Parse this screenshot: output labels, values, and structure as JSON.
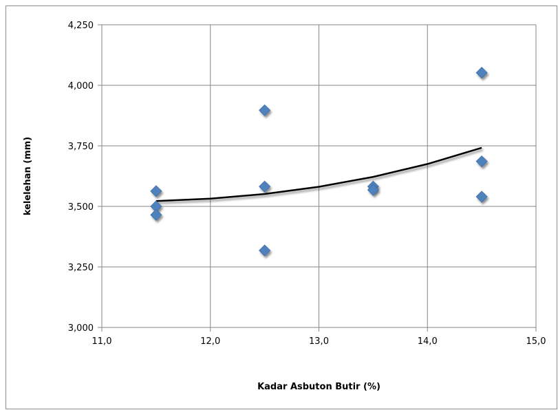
{
  "chart_data": {
    "type": "scatter",
    "title": "",
    "xlabel": "Kadar Asbuton Butir (%)",
    "ylabel": "kelelehan (mm)",
    "xlim": [
      11.0,
      15.0
    ],
    "ylim": [
      3000,
      4250
    ],
    "x_ticks": [
      11.0,
      12.0,
      13.0,
      14.0,
      15.0
    ],
    "x_tick_labels": [
      "11,0",
      "12,0",
      "13,0",
      "14,0",
      "15,0"
    ],
    "y_ticks": [
      3000,
      3250,
      3500,
      3750,
      4000,
      4250
    ],
    "y_tick_labels": [
      "3,000",
      "3,250",
      "3,500",
      "3,750",
      "4,000",
      "4,250"
    ],
    "grid": true,
    "legend": "none",
    "marker_color": "#4f81bd",
    "trend_color": "#000000",
    "series": [
      {
        "marker": "diamond",
        "points": [
          {
            "x": 11.5,
            "y": 3563
          },
          {
            "x": 11.5,
            "y": 3500
          },
          {
            "x": 11.5,
            "y": 3465
          },
          {
            "x": 12.5,
            "y": 3897
          },
          {
            "x": 12.5,
            "y": 3582
          },
          {
            "x": 12.5,
            "y": 3318
          },
          {
            "x": 13.5,
            "y": 3582
          },
          {
            "x": 13.5,
            "y": 3568
          },
          {
            "x": 14.5,
            "y": 4052
          },
          {
            "x": 14.5,
            "y": 3686
          },
          {
            "x": 14.5,
            "y": 3540
          }
        ]
      }
    ],
    "trendline": {
      "type": "polynomial",
      "x": [
        11.5,
        12.0,
        12.5,
        13.0,
        13.5,
        14.0,
        14.5
      ],
      "y": [
        3522,
        3532,
        3551,
        3581,
        3622,
        3675,
        3742
      ]
    }
  }
}
